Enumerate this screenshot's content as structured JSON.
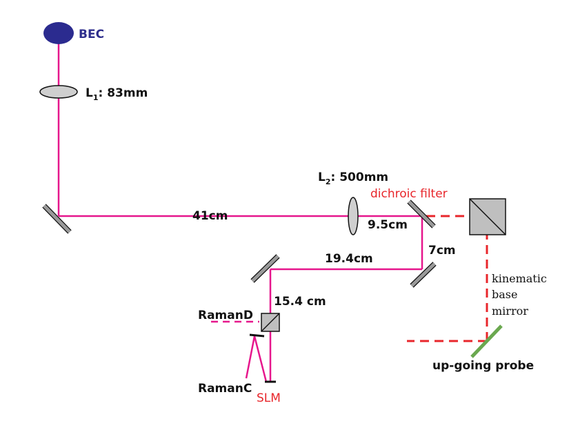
{
  "labels": {
    "bec": "BEC",
    "l1_letter": "L",
    "l1_sub": "1",
    "l1_value": ": 83mm",
    "l2_letter": "L",
    "l2_sub": "2",
    "l2_value": ": 500mm",
    "dichroic": "dichroic filter",
    "d41": "41cm",
    "d95": "9.5cm",
    "d7": "7cm",
    "d194": "19.4cm",
    "d154": "15.4 cm",
    "raman_d": "RamanD",
    "raman_c": "RamanC",
    "slm": "SLM",
    "kinematic_1": "kinematic",
    "kinematic_2": "base",
    "kinematic_3": "mirror",
    "probe": "up-going probe"
  },
  "colors": {
    "beam": "#e6168c",
    "probe_beam": "#e8262b",
    "bec": "#2b2b8f",
    "optic_fill": "#9a9a9a",
    "lens_fill": "#cfcfcf",
    "kinematic_mirror": "#6aa84f"
  }
}
